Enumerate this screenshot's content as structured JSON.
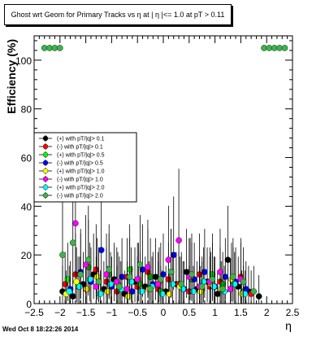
{
  "chart_data": {
    "type": "scatter",
    "title": "Ghost wrt Geom for Primary Tracks vs   η at | η |<= 1.0 at pT > 0.11",
    "xlabel": "η",
    "ylabel": "Efficiency (%)",
    "xlim": [
      -2.5,
      2.5
    ],
    "ylim": [
      0,
      110
    ],
    "x_ticks": [
      "−2.5",
      "−2",
      "−1.5",
      "−1",
      "−0.5",
      "0",
      "0.5",
      "1",
      "1.5",
      "2",
      "2.5"
    ],
    "y_ticks": [
      "0",
      "20",
      "40",
      "60",
      "80",
      "100"
    ],
    "grid": false,
    "legend_position": "left",
    "footer": "Wed Oct  8 18:22:26 2014",
    "series": [
      {
        "name": "(+) with pT/|q|> 0.1",
        "color": "#000000",
        "x": [
          -1.95,
          -1.75,
          -1.55,
          -1.35,
          -1.15,
          -0.95,
          -0.75,
          -0.55,
          -0.35,
          -0.15,
          0.05,
          0.25,
          0.45,
          0.65,
          0.85,
          1.05,
          1.25,
          1.45,
          1.65,
          1.85
        ],
        "y": [
          5,
          3,
          8,
          12,
          6,
          10,
          4,
          9,
          7,
          11,
          5,
          8,
          13,
          6,
          9,
          4,
          18,
          7,
          5,
          3
        ]
      },
      {
        "name": "(-) with pT/|q|> 0.1",
        "color": "#ff0000",
        "x": [
          -1.9,
          -1.7,
          -1.5,
          -1.3,
          -1.1,
          -0.9,
          -0.7,
          -0.5,
          -0.3,
          -0.1,
          0.1,
          0.3,
          0.5,
          0.7,
          0.9,
          1.1,
          1.3,
          1.5,
          1.7
        ],
        "y": [
          8,
          12,
          6,
          14,
          9,
          5,
          11,
          7,
          13,
          6,
          10,
          8,
          5,
          12,
          7,
          9,
          6,
          11,
          4
        ]
      },
      {
        "name": "(+) with pT/|q|> 0.5",
        "color": "#00ff00",
        "x": [
          -1.85,
          -1.65,
          -1.45,
          -1.25,
          -1.05,
          -0.85,
          -0.65,
          -0.45,
          -0.25,
          -0.05,
          0.15,
          0.35,
          0.55,
          0.75,
          0.95,
          1.15,
          1.35,
          1.55
        ],
        "y": [
          10,
          7,
          15,
          9,
          12,
          6,
          14,
          8,
          11,
          5,
          13,
          7,
          10,
          6,
          12,
          8,
          9,
          5
        ]
      },
      {
        "name": "(-) with pT/|q|> 0.5",
        "color": "#0000ff",
        "x": [
          -1.8,
          -1.6,
          -1.4,
          -1.2,
          -1.0,
          -0.8,
          -0.6,
          -0.4,
          -0.2,
          0.0,
          0.2,
          0.4,
          0.6,
          0.8,
          1.0,
          1.2,
          1.4,
          1.6
        ],
        "y": [
          6,
          13,
          9,
          22,
          7,
          11,
          5,
          14,
          8,
          12,
          20,
          6,
          10,
          13,
          7,
          11,
          9,
          6
        ]
      },
      {
        "name": "(+) with pT/|q|> 1.0",
        "color": "#ffff00",
        "x": [
          -1.88,
          -1.68,
          -1.48,
          -1.28,
          -1.08,
          -0.88,
          -0.68,
          -0.48,
          -0.28,
          -0.08,
          0.12,
          0.32,
          0.52,
          0.72,
          0.92,
          1.12,
          1.32,
          1.52
        ],
        "y": [
          4,
          9,
          6,
          11,
          5,
          8,
          3,
          10,
          6,
          9,
          4,
          7,
          11,
          5,
          8,
          6,
          10,
          4
        ]
      },
      {
        "name": "(-) with pT/|q|> 1.0",
        "color": "#ff00ff",
        "x": [
          -1.7,
          -1.5,
          -1.3,
          -1.1,
          -0.9,
          -0.7,
          -0.5,
          -0.3,
          -0.1,
          0.1,
          0.3,
          0.5,
          0.7,
          0.9,
          1.1,
          1.3,
          1.5
        ],
        "y": [
          33,
          16,
          7,
          12,
          9,
          6,
          10,
          15,
          8,
          18,
          26,
          11,
          7,
          9,
          13,
          6,
          10
        ]
      },
      {
        "name": "(+) with pT/|q|> 2.0",
        "color": "#00ffff",
        "x": [
          -1.82,
          -1.62,
          -1.42,
          -1.22,
          -1.02,
          -0.82,
          -0.62,
          -0.42,
          -0.22,
          -0.02,
          0.18,
          0.38,
          0.58,
          0.78,
          0.98,
          1.18,
          1.38,
          1.58
        ],
        "y": [
          5,
          7,
          10,
          4,
          8,
          6,
          9,
          5,
          7,
          4,
          8,
          6,
          5,
          9,
          7,
          5,
          8,
          4
        ]
      },
      {
        "name": "(-) with pT/|q|> 2.0",
        "color": "#3cb44b",
        "x": [
          -2.3,
          -2.2,
          -2.1,
          -2.0,
          -1.95,
          -1.75,
          -1.6,
          -1.45,
          -1.25,
          -1.05,
          -0.85,
          -0.65,
          -0.45,
          -0.25,
          -0.05,
          0.15,
          0.35,
          0.55,
          0.75,
          0.95,
          1.15,
          1.35,
          1.55,
          1.75,
          1.95,
          2.05,
          2.15,
          2.25,
          2.35
        ],
        "y": [
          105,
          105,
          105,
          105,
          20,
          25,
          12,
          18,
          9,
          14,
          7,
          11,
          16,
          6,
          10,
          13,
          8,
          12,
          7,
          10,
          6,
          11,
          9,
          5,
          105,
          105,
          105,
          105,
          105
        ]
      }
    ]
  }
}
